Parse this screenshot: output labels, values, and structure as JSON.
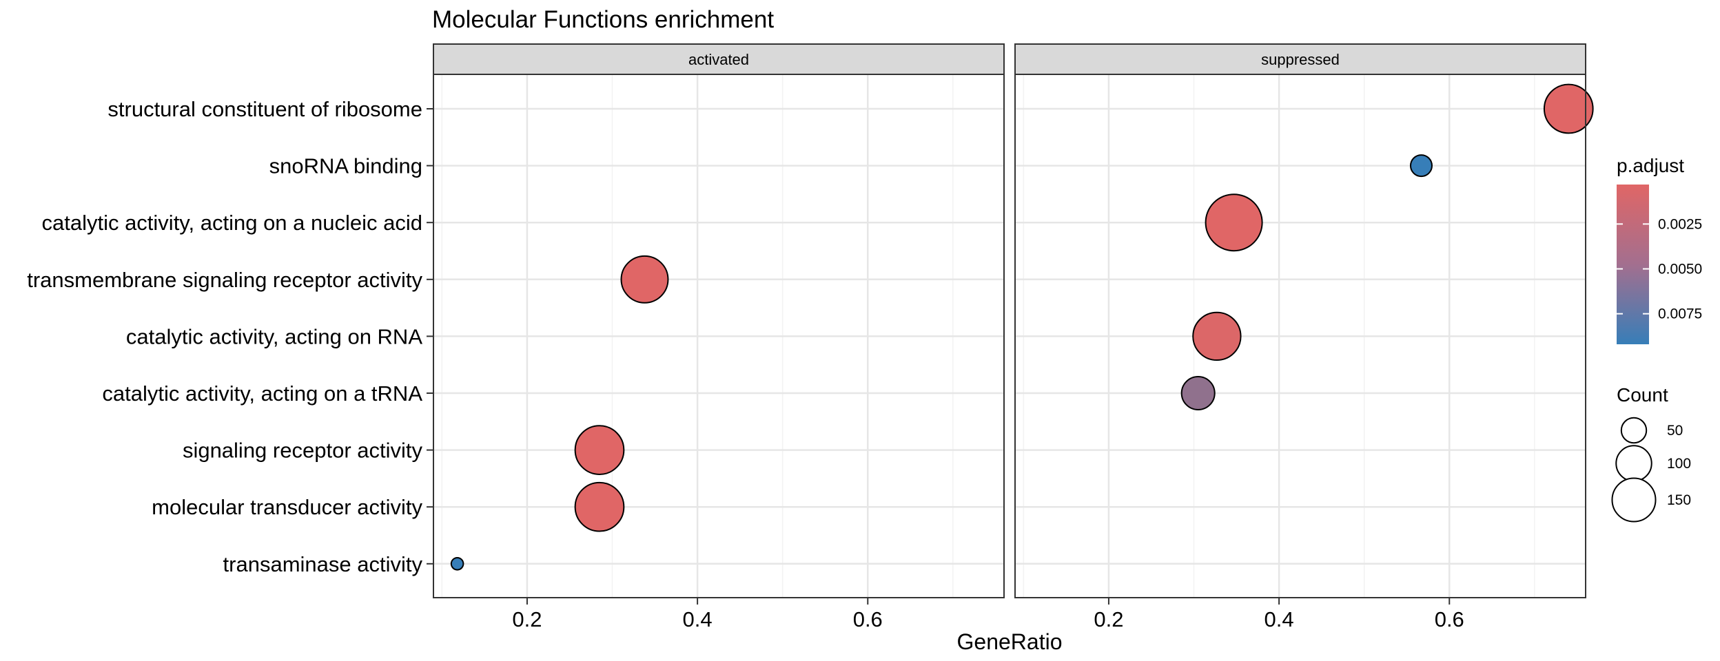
{
  "chart_data": {
    "type": "scatter",
    "title": "Molecular Functions enrichment",
    "xlabel": "GeneRatio",
    "ylabel": "",
    "xlim": [
      0.09,
      0.76
    ],
    "x_ticks": [
      0.2,
      0.4,
      0.6
    ],
    "x_tick_labels": [
      "0.2",
      "0.4",
      "0.6"
    ],
    "categories": [
      "structural constituent of ribosome",
      "snoRNA binding",
      "catalytic activity, acting on a nucleic acid",
      "transmembrane signaling receptor activity",
      "catalytic activity, acting on RNA",
      "catalytic activity, acting on a tRNA",
      "signaling receptor activity",
      "molecular transducer activity",
      "transaminase activity"
    ],
    "grid": true,
    "facets": [
      {
        "name": "activated",
        "points": [
          {
            "category": "transmembrane signaling receptor activity",
            "x": 0.338,
            "count": 120,
            "p_adjust": 0.0003
          },
          {
            "category": "signaling receptor activity",
            "x": 0.285,
            "count": 130,
            "p_adjust": 0.0003
          },
          {
            "category": "molecular transducer activity",
            "x": 0.285,
            "count": 130,
            "p_adjust": 0.0003
          },
          {
            "category": "transaminase activity",
            "x": 0.118,
            "count": 8,
            "p_adjust": 0.0092
          }
        ]
      },
      {
        "name": "suppressed",
        "points": [
          {
            "category": "structural constituent of ribosome",
            "x": 0.74,
            "count": 130,
            "p_adjust": 0.0003
          },
          {
            "category": "snoRNA binding",
            "x": 0.567,
            "count": 25,
            "p_adjust": 0.0092
          },
          {
            "category": "catalytic activity, acting on a nucleic acid",
            "x": 0.347,
            "count": 175,
            "p_adjust": 0.0003
          },
          {
            "category": "catalytic activity, acting on RNA",
            "x": 0.327,
            "count": 125,
            "p_adjust": 0.0005
          },
          {
            "category": "catalytic activity, acting on a tRNA",
            "x": 0.305,
            "count": 60,
            "p_adjust": 0.0045
          }
        ]
      }
    ],
    "legend_color": {
      "title": "p.adjust",
      "range": [
        0.0003,
        0.0092
      ],
      "ticks": [
        0.0025,
        0.005,
        0.0075
      ],
      "tick_labels": [
        "0.0025",
        "0.0050",
        "0.0075"
      ],
      "low_color": "#e06666",
      "high_color": "#377eb8",
      "placement": "right"
    },
    "legend_size": {
      "title": "Count",
      "values": [
        50,
        100,
        150
      ],
      "labels": [
        "50",
        "100",
        "150"
      ],
      "placement": "right"
    }
  }
}
